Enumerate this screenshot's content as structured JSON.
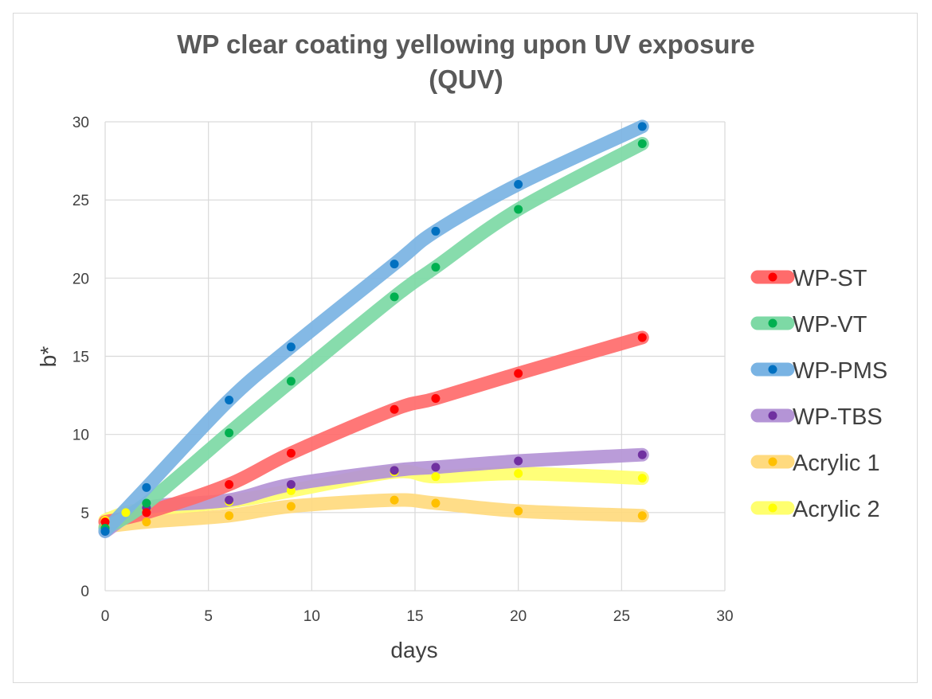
{
  "chart_data": {
    "type": "scatter",
    "title_lines": [
      "WP clear coating yellowing upon UV exposure",
      "(QUV)"
    ],
    "xlabel": "days",
    "ylabel": "b*",
    "xlim": [
      0,
      30
    ],
    "ylim": [
      0,
      30
    ],
    "xticks": [
      0,
      5,
      10,
      15,
      20,
      25,
      30
    ],
    "yticks": [
      0,
      5,
      10,
      15,
      20,
      25,
      30
    ],
    "grid": true,
    "legend_position": "right",
    "series": [
      {
        "name": "WP-ST",
        "color": "#ff0000",
        "line_color": "#ff6b6b",
        "x": [
          0,
          2,
          6,
          9,
          14,
          16,
          20,
          26
        ],
        "y": [
          4.4,
          5.0,
          6.8,
          8.8,
          11.6,
          12.3,
          13.9,
          16.2
        ]
      },
      {
        "name": "WP-VT",
        "color": "#00b050",
        "line_color": "#7dd9a5",
        "x": [
          0,
          2,
          6,
          9,
          14,
          16,
          20,
          26
        ],
        "y": [
          4.0,
          5.6,
          10.1,
          13.4,
          18.8,
          20.7,
          24.4,
          28.6
        ]
      },
      {
        "name": "WP-PMS",
        "color": "#0070c0",
        "line_color": "#79b3e3",
        "x": [
          0,
          2,
          6,
          9,
          14,
          16,
          20,
          26
        ],
        "y": [
          3.8,
          6.6,
          12.2,
          15.6,
          20.9,
          23.0,
          26.0,
          29.7
        ]
      },
      {
        "name": "WP-TBS",
        "color": "#7030a0",
        "line_color": "#b494d6",
        "x": [
          0,
          2,
          6,
          9,
          14,
          16,
          20,
          26
        ],
        "y": [
          3.8,
          5.3,
          5.8,
          6.8,
          7.7,
          7.9,
          8.3,
          8.7
        ]
      },
      {
        "name": "Acrylic 1",
        "color": "#ffc000",
        "line_color": "#ffda7e",
        "x": [
          0,
          2,
          6,
          9,
          14,
          16,
          20,
          26
        ],
        "y": [
          4.1,
          4.4,
          4.8,
          5.4,
          5.8,
          5.6,
          5.1,
          4.8
        ]
      },
      {
        "name": "Acrylic 2",
        "color": "#ffff00",
        "line_color": "#ffff6e",
        "x": [
          0,
          1,
          2,
          6,
          9,
          14,
          16,
          20,
          26
        ],
        "y": [
          4.5,
          5.0,
          5.2,
          5.7,
          6.4,
          7.6,
          7.3,
          7.5,
          7.2
        ]
      }
    ]
  }
}
